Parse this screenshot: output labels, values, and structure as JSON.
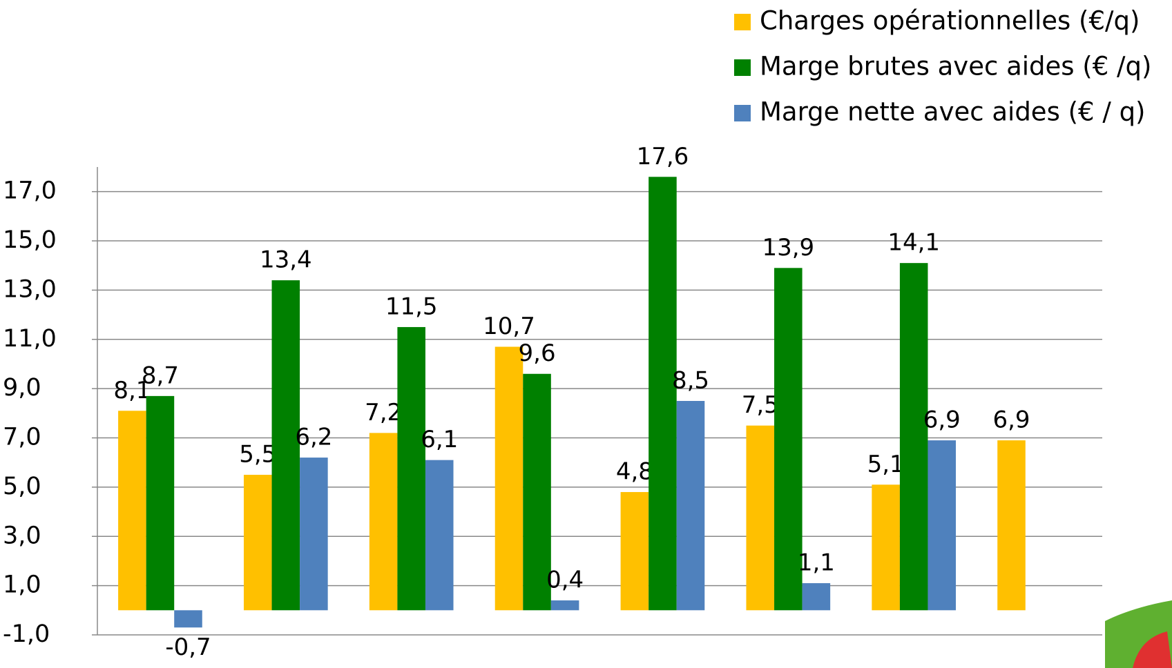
{
  "chart_data": {
    "type": "bar",
    "categories": [
      null,
      null,
      null,
      null,
      null,
      null,
      null,
      null
    ],
    "series": [
      {
        "name": "Charges opérationnelles (€/q)",
        "color": "#ffc000",
        "values": [
          8.1,
          5.5,
          7.2,
          10.7,
          4.8,
          7.5,
          5.1,
          6.9
        ],
        "value_labels": [
          "8,1",
          "5,5",
          "7,2",
          "10,7",
          "4,8",
          "7,5",
          "5,1",
          "6,9"
        ]
      },
      {
        "name": "Marge brutes avec aides (€ /q)",
        "color": "#008000",
        "values": [
          8.7,
          13.4,
          11.5,
          9.6,
          17.6,
          13.9,
          14.1,
          null
        ],
        "value_labels": [
          "8,7",
          "13,4",
          "11,5",
          "9,6",
          "17,6",
          "13,9",
          "14,1",
          null
        ]
      },
      {
        "name": "Marge nette avec aides (€ / q)",
        "color": "#4f81bd",
        "values": [
          -0.7,
          6.2,
          6.1,
          0.4,
          8.5,
          1.1,
          6.9,
          null
        ],
        "value_labels": [
          "-0,7",
          "6,2",
          "6,1",
          "0,4",
          "8,5",
          "1,1",
          "6,9",
          null
        ]
      }
    ],
    "ylim": [
      -1,
      18
    ],
    "yticks": [
      {
        "value": -1,
        "label": "-1,0"
      },
      {
        "value": 1,
        "label": "1,0"
      },
      {
        "value": 3,
        "label": "3,0"
      },
      {
        "value": 5,
        "label": "5,0"
      },
      {
        "value": 7,
        "label": "7,0"
      },
      {
        "value": 9,
        "label": "9,0"
      },
      {
        "value": 11,
        "label": "11,0"
      },
      {
        "value": 13,
        "label": "13,0"
      },
      {
        "value": 15,
        "label": "15,0"
      },
      {
        "value": 17,
        "label": "17,0"
      }
    ],
    "grid": true,
    "legend": "top-right"
  }
}
